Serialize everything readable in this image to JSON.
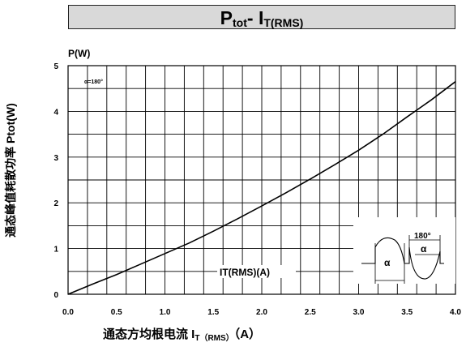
{
  "title": {
    "main": "P",
    "sub1": "tot",
    "sep": "- I",
    "sub2": "T(RMS)"
  },
  "chart_data": {
    "type": "line",
    "x_unit_label": "P(W)",
    "ylabel": "通态峰值耗散功率 Ptot(W)",
    "xlabel": {
      "main": "通态方均根电流 I",
      "sub": "T（RMS）",
      "unit": "（A）"
    },
    "legend_in_plot": "IT(RMS)(A)",
    "param_note": "α=180°",
    "xlim": [
      0,
      4
    ],
    "ylim": [
      0,
      5
    ],
    "x_ticks": [
      "0.0",
      "0.5",
      "1.0",
      "1.5",
      "2.0",
      "2.5",
      "3.0",
      "3.5",
      "4.0"
    ],
    "y_ticks": [
      "0",
      "1",
      "2",
      "3",
      "4",
      "5"
    ],
    "grid": true,
    "series": [
      {
        "x": [
          0,
          0.25,
          0.5,
          0.75,
          1.0,
          1.25,
          1.5,
          1.75,
          2.0,
          2.25,
          2.5,
          2.75,
          3.0,
          3.25,
          3.5,
          3.75,
          4.0
        ],
        "values": [
          0.0,
          0.22,
          0.43,
          0.66,
          0.89,
          1.12,
          1.38,
          1.65,
          1.93,
          2.22,
          2.52,
          2.83,
          3.15,
          3.5,
          3.88,
          4.25,
          4.65
        ]
      }
    ],
    "inset": {
      "angle_label": "180°",
      "alpha": "α"
    }
  }
}
